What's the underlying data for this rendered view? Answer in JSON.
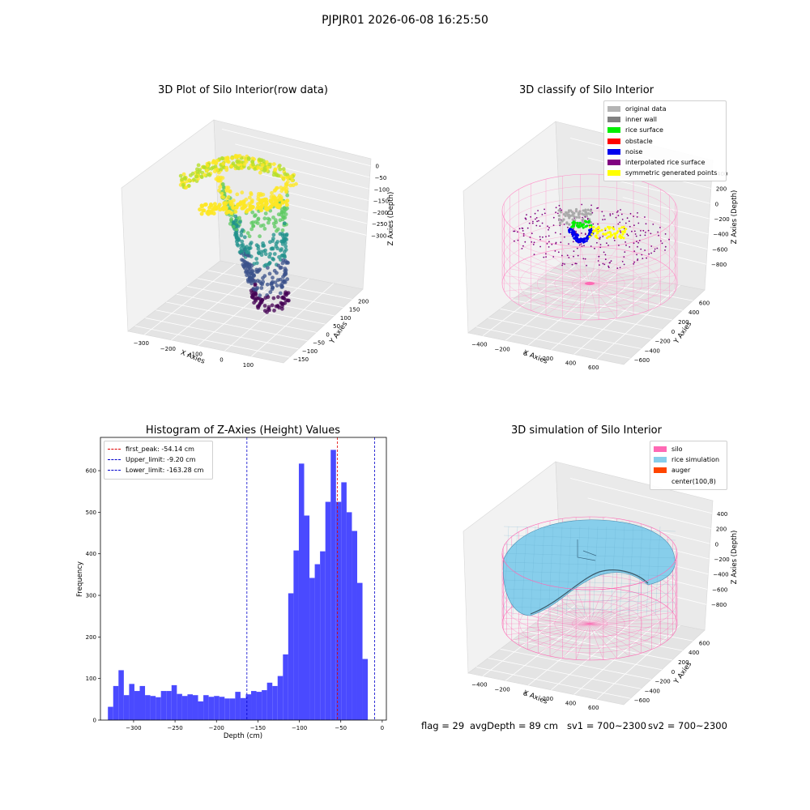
{
  "suptitle": "PJPJR01 2026-06-08 16:25:50",
  "footer": {
    "flag": "flag = 29",
    "avg": "avgDepth = 89 cm",
    "sv1": "sv1 = 700~2300",
    "sv2": "sv2 = 700~2300"
  },
  "chart_data": [
    {
      "type": "scatter",
      "title": "3D Plot of Silo Interior(row data)",
      "xlabel": "X Axies",
      "ylabel": "Y Axies",
      "zlabel": "Z Axies (Depth)",
      "x_ticks": [
        "−300",
        "−200",
        "−100",
        "0",
        "100"
      ],
      "y_ticks": [
        "−150",
        "−100",
        "−50",
        "0",
        "50",
        "100",
        "150",
        "200"
      ],
      "z_ticks": [
        "0",
        "−50",
        "−100",
        "−150",
        "−200",
        "−250",
        "−300"
      ],
      "xlim": [
        -330,
        160
      ],
      "ylim": [
        -160,
        220
      ],
      "zlim": [
        -340,
        10
      ],
      "colormap": "viridis",
      "colors": [
        "#440154",
        "#3b528b",
        "#21918c",
        "#5ec962",
        "#fde725"
      ]
    },
    {
      "type": "scatter",
      "title": "3D classify of Silo Interior",
      "xlabel": "X Axies",
      "ylabel": "Y Axies",
      "zlabel": "Z Axies (Depth)",
      "x_ticks": [
        "−400",
        "−200",
        "0",
        "200",
        "400",
        "600"
      ],
      "y_ticks": [
        "−600",
        "−400",
        "−200",
        "0",
        "200",
        "400",
        "600"
      ],
      "z_ticks": [
        "400",
        "200",
        "0",
        "−200",
        "−400",
        "−600",
        "−800"
      ],
      "legend": [
        {
          "label": "original data",
          "color": "#b4b4b4"
        },
        {
          "label": "inner wall",
          "color": "#808080"
        },
        {
          "label": "rice surface",
          "color": "#00ee00"
        },
        {
          "label": "obstacle",
          "color": "#ff0000"
        },
        {
          "label": "noise",
          "color": "#0000ee"
        },
        {
          "label": "interpolated rice surface",
          "color": "#800080"
        },
        {
          "label": "symmetric generated points",
          "color": "#ffff00"
        }
      ],
      "legend_loc": "upper right"
    },
    {
      "type": "bar",
      "title": "Histogram of Z-Axies (Height) Values",
      "xlabel": "Depth (cm)",
      "ylabel": "Frequency",
      "bin_start": -331,
      "bin_width": 6.4,
      "values": [
        32,
        82,
        120,
        60,
        87,
        70,
        82,
        60,
        58,
        55,
        70,
        70,
        84,
        63,
        58,
        62,
        60,
        45,
        60,
        56,
        58,
        56,
        52,
        52,
        68,
        53,
        62,
        70,
        68,
        72,
        90,
        82,
        106,
        158,
        305,
        408,
        617,
        492,
        342,
        375,
        406,
        525,
        650,
        525,
        572,
        500,
        455,
        330,
        147
      ],
      "xlim": [
        -340,
        5
      ],
      "ylim": [
        0,
        680
      ],
      "x_ticks": [
        -300,
        -250,
        -200,
        -150,
        -100,
        -50,
        0
      ],
      "y_ticks": [
        0,
        100,
        200,
        300,
        400,
        500,
        600
      ],
      "bar_color": "#4a4aff",
      "vlines": [
        {
          "label": "first_peak: -54.14 cm",
          "x": -54.14,
          "color": "#e00000"
        },
        {
          "label": "Upper_limit: -9.20 cm",
          "x": -9.2,
          "color": "#0000cc"
        },
        {
          "label": "Lower_limit: -163.28 cm",
          "x": -163.28,
          "color": "#0000cc"
        }
      ],
      "legend_loc": "upper left"
    },
    {
      "type": "surface",
      "title": "3D simulation of Silo Interior",
      "xlabel": "X Axies",
      "ylabel": "Y Axies",
      "zlabel": "Z Axies (Depth)",
      "x_ticks": [
        "−400",
        "−200",
        "0",
        "200",
        "400",
        "600"
      ],
      "y_ticks": [
        "−600",
        "−400",
        "−200",
        "0",
        "200",
        "400",
        "600"
      ],
      "z_ticks": [
        "400",
        "200",
        "0",
        "−200",
        "−400",
        "−600",
        "−800"
      ],
      "legend": [
        {
          "label": "silo",
          "color": "#ff69b4"
        },
        {
          "label": "rice simulation",
          "color": "#87ceeb"
        },
        {
          "label": "auger",
          "color": "#ff4500"
        },
        {
          "label": "center(100,8)",
          "color": ""
        }
      ],
      "legend_loc": "upper right"
    }
  ]
}
